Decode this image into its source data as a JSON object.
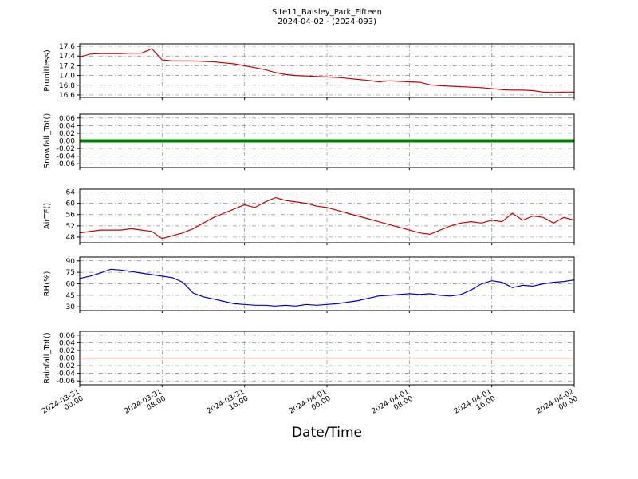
{
  "figure": {
    "title_line1": "Site11_Baisley_Park_Fifteen",
    "title_line2": "2024-04-02 - (2024-093)",
    "xlabel": "Date/Time"
  },
  "chart_data": {
    "type": "line",
    "title": "Site11_Baisley_Park_Fifteen 2024-04-02 - (2024-093)",
    "xlabel": "Date/Time",
    "x_axis": {
      "range_hours": [
        0,
        48
      ],
      "tick_labels": [
        [
          "2024-03-31",
          "00:00"
        ],
        [
          "2024-03-31",
          "08:00"
        ],
        [
          "2024-03-31",
          "16:00"
        ],
        [
          "2024-04-01",
          "00:00"
        ],
        [
          "2024-04-01",
          "08:00"
        ],
        [
          "2024-04-01",
          "16:00"
        ],
        [
          "2024-04-02",
          "00:00"
        ]
      ]
    },
    "panels": [
      {
        "ylabel": "P(unitless)",
        "color": "#cc0000",
        "linewidth": 1.2,
        "ylim": [
          16.55,
          17.65
        ],
        "ytick_labels": [
          "17.6",
          "17.4",
          "17.2",
          "17.0",
          "16.8",
          "16.6"
        ],
        "values": [
          17.38,
          17.44,
          17.45,
          17.45,
          17.45,
          17.46,
          17.46,
          17.55,
          17.32,
          17.3,
          17.3,
          17.3,
          17.29,
          17.28,
          17.26,
          17.24,
          17.2,
          17.16,
          17.12,
          17.06,
          17.02,
          17.0,
          16.99,
          16.98,
          16.97,
          16.96,
          16.94,
          16.92,
          16.9,
          16.87,
          16.89,
          16.88,
          16.87,
          16.86,
          16.81,
          16.79,
          16.78,
          16.77,
          16.76,
          16.75,
          16.73,
          16.71,
          16.7,
          16.7,
          16.69,
          16.66,
          16.65,
          16.66,
          16.66
        ]
      },
      {
        "ylabel": "Snowfall_Tot()",
        "color": "#007f00",
        "linewidth": 4,
        "ylim": [
          -0.07,
          0.07
        ],
        "ytick_labels": [
          "0.06",
          "0.04",
          "0.02",
          "0.00",
          "-0.02",
          "-0.04",
          "-0.06"
        ],
        "values": [
          0,
          0
        ]
      },
      {
        "ylabel": "AirTF()",
        "color": "#cc0000",
        "linewidth": 1.2,
        "ylim": [
          46,
          65
        ],
        "ytick_labels": [
          "64",
          "60",
          "56",
          "52",
          "48"
        ],
        "values": [
          49.5,
          50.0,
          50.5,
          50.5,
          50.5,
          51.0,
          50.5,
          50.0,
          47.5,
          48.5,
          49.5,
          51.0,
          53.0,
          55.0,
          56.5,
          58.0,
          59.5,
          58.5,
          60.5,
          62.0,
          61.0,
          60.5,
          60.0,
          59.0,
          58.5,
          57.5,
          56.5,
          55.5,
          54.5,
          53.5,
          52.5,
          51.5,
          50.5,
          49.5,
          49.0,
          50.5,
          52.0,
          53.0,
          53.5,
          53.0,
          54.0,
          53.5,
          56.5,
          54.0,
          55.5,
          55.0,
          53.0,
          55.0,
          54.0
        ]
      },
      {
        "ylabel": "RH(%)",
        "color": "#0000cc",
        "linewidth": 1.2,
        "ylim": [
          25,
          95
        ],
        "ytick_labels": [
          "90",
          "75",
          "60",
          "45",
          "30"
        ],
        "values": [
          67,
          70,
          74,
          79,
          78,
          76,
          74,
          72,
          70,
          68,
          62,
          48,
          43,
          40,
          37,
          34,
          33,
          32,
          32,
          31,
          32,
          31,
          33,
          32,
          33,
          34,
          36,
          38,
          41,
          44,
          45,
          46,
          47,
          46,
          47,
          45,
          44,
          46,
          52,
          60,
          64,
          62,
          55,
          58,
          57,
          60,
          62,
          63,
          65
        ]
      },
      {
        "ylabel": "Rainfall_Tot()",
        "color": "#ff0000",
        "linewidth": 1,
        "ylim": [
          -0.07,
          0.07
        ],
        "ytick_labels": [
          "0.06",
          "0.04",
          "0.02",
          "0.00",
          "-0.02",
          "-0.04",
          "-0.06"
        ],
        "values": [
          0,
          0
        ]
      }
    ]
  }
}
